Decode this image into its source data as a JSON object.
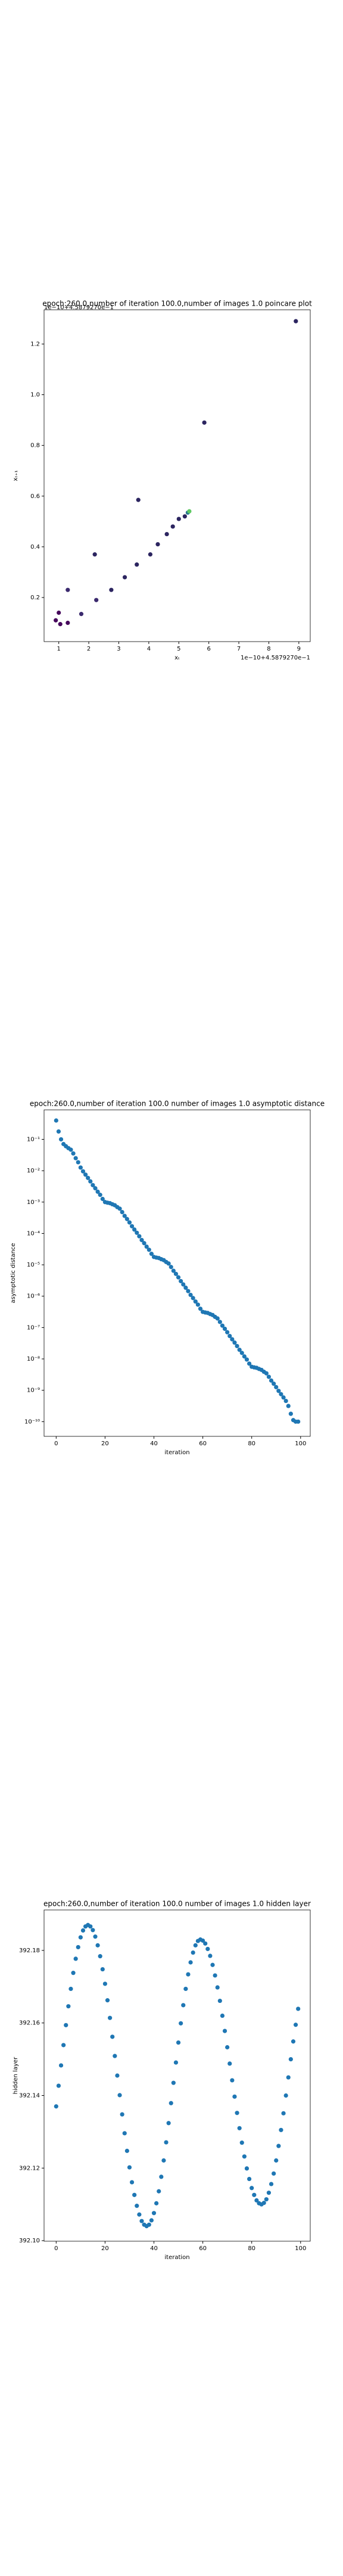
{
  "chart_data": [
    {
      "type": "scatter",
      "title": "epoch:260.0,number of iteration 100.0,number of images 1.0 poincare plot",
      "xlabel": "xₜ",
      "ylabel": "xₜ₊₁",
      "x_offset": "1e−10+4.5879270e−1",
      "y_offset": "1e−10+4.5879270e−1",
      "x": [
        0.9,
        1.0,
        1.05,
        1.3,
        1.3,
        1.75,
        2.2,
        2.25,
        2.75,
        3.2,
        3.6,
        3.65,
        4.05,
        4.3,
        4.6,
        4.8,
        5.0,
        5.2,
        5.3,
        5.35,
        5.85,
        8.9
      ],
      "series": [
        {
          "colors": [
            "#46085c",
            "#46085c",
            "#46085c",
            "#3b2a6e",
            "#46085c",
            "#3b2a6e",
            "#2c2560",
            "#3b2a6e",
            "#2c2560",
            "#2c2560",
            "#2c2560",
            "#2c2560",
            "#2c2560",
            "#2c2560",
            "#2c2560",
            "#2c2560",
            "#2c2560",
            "#2c2560",
            "#2a788e",
            "#5ec962",
            "#2c2560",
            "#2c2560"
          ],
          "values": [
            0.11,
            0.14,
            0.095,
            0.23,
            0.1,
            0.135,
            0.37,
            0.19,
            0.23,
            0.28,
            0.33,
            0.585,
            0.37,
            0.41,
            0.45,
            0.48,
            0.51,
            0.52,
            0.535,
            0.54,
            0.89,
            1.29
          ]
        }
      ],
      "xlim": [
        0.51,
        9.38
      ],
      "ylim": [
        0.026,
        1.335
      ],
      "xticks": [
        1,
        2,
        3,
        4,
        5,
        6,
        7,
        8,
        9
      ],
      "yticks": [
        0.2,
        0.4,
        0.6,
        0.8,
        {
          "value": 1,
          "label": "1.0"
        },
        1.2
      ]
    },
    {
      "type": "scatter",
      "log": true,
      "title": "epoch:260.0,number of iteration 100.0  number of images 1.0 asymptotic distance",
      "xlabel": "iteration",
      "ylabel": "asymptotic distance",
      "x": [
        0,
        1,
        2,
        3,
        4,
        5,
        6,
        7,
        8,
        9,
        10,
        11,
        12,
        13,
        14,
        15,
        16,
        17,
        18,
        19,
        20,
        21,
        22,
        23,
        24,
        25,
        26,
        27,
        28,
        29,
        30,
        31,
        32,
        33,
        34,
        35,
        36,
        37,
        38,
        39,
        40,
        41,
        42,
        43,
        44,
        45,
        46,
        47,
        48,
        49,
        50,
        51,
        52,
        53,
        54,
        55,
        56,
        57,
        58,
        59,
        60,
        61,
        62,
        63,
        64,
        65,
        66,
        67,
        68,
        69,
        70,
        71,
        72,
        73,
        74,
        75,
        76,
        77,
        78,
        79,
        80,
        81,
        82,
        83,
        84,
        85,
        86,
        87,
        88,
        89,
        90,
        91,
        92,
        93,
        94,
        95,
        96,
        97,
        98,
        99
      ],
      "series": [
        {
          "color": "#1f77b4",
          "values": [
            0.398,
            0.178,
            0.1,
            0.0708,
            0.0603,
            0.0525,
            0.0468,
            0.0355,
            0.0251,
            0.0186,
            0.0126,
            0.00955,
            0.0075,
            0.00589,
            0.00457,
            0.00347,
            0.00275,
            0.00214,
            0.0017,
            0.00126,
            0.001,
            0.000955,
            0.000923,
            0.000851,
            0.000794,
            0.000692,
            0.000617,
            0.000479,
            0.000363,
            0.000288,
            0.000224,
            0.00017,
            0.000133,
            0.000105,
            8.13e-05,
            6.17e-05,
            4.9e-05,
            3.8e-05,
            3.02e-05,
            2.24e-05,
            1.78e-05,
            1.7e-05,
            1.64e-05,
            1.51e-05,
            1.41e-05,
            1.23e-05,
            1.1e-05,
            8.51e-06,
            6.46e-06,
            5.13e-06,
            3.98e-06,
            3.02e-06,
            2.37e-06,
            1.86e-06,
            1.45e-06,
            1.1e-06,
            8.71e-07,
            6.76e-07,
            5.37e-07,
            3.98e-07,
            3.16e-07,
            3.02e-07,
            2.92e-07,
            2.69e-07,
            2.51e-07,
            2.19e-07,
            1.95e-07,
            1.51e-07,
            1.15e-07,
            9.12e-08,
            7.08e-08,
            5.37e-08,
            4.22e-08,
            3.31e-08,
            2.57e-08,
            1.95e-08,
            1.55e-08,
            1.2e-08,
            9.55e-09,
            7.08e-09,
            5.62e-09,
            5.37e-09,
            5.19e-09,
            4.79e-09,
            4.47e-09,
            3.89e-09,
            3.47e-09,
            2.69e-09,
            2.04e-09,
            1.62e-09,
            1.26e-09,
            9.55e-10,
            7.5e-10,
            5.89e-10,
            4.57e-10,
            3.16e-10,
            1.78e-10,
            1.12e-10,
            1e-10,
            1e-10
          ]
        }
      ],
      "xlim": [
        -4.95,
        103.95
      ],
      "ylim": [
        3.4e-11,
        0.87
      ],
      "xticks": [
        0,
        20,
        40,
        60,
        80,
        100
      ],
      "yticks": [
        {
          "value": 0.1,
          "label": "10⁻¹"
        },
        {
          "value": 0.01,
          "label": "10⁻²"
        },
        {
          "value": 0.001,
          "label": "10⁻³"
        },
        {
          "value": 0.0001,
          "label": "10⁻⁴"
        },
        {
          "value": 1e-05,
          "label": "10⁻⁵"
        },
        {
          "value": 1e-06,
          "label": "10⁻⁶"
        },
        {
          "value": 1e-07,
          "label": "10⁻⁷"
        },
        {
          "value": 1e-08,
          "label": "10⁻⁸"
        },
        {
          "value": 1e-09,
          "label": "10⁻⁹"
        },
        {
          "value": 1e-10,
          "label": "10⁻¹⁰"
        }
      ]
    },
    {
      "type": "scatter",
      "title": "epoch:260.0,number of iteration 100.0  number of images 1.0 hidden layer",
      "xlabel": "iteration",
      "ylabel": "hidden layer",
      "x": [
        0,
        1,
        2,
        3,
        4,
        5,
        6,
        7,
        8,
        9,
        10,
        11,
        12,
        13,
        14,
        15,
        16,
        17,
        18,
        19,
        20,
        21,
        22,
        23,
        24,
        25,
        26,
        27,
        28,
        29,
        30,
        31,
        32,
        33,
        34,
        35,
        36,
        37,
        38,
        39,
        40,
        41,
        42,
        43,
        44,
        45,
        46,
        47,
        48,
        49,
        50,
        51,
        52,
        53,
        54,
        55,
        56,
        57,
        58,
        59,
        60,
        61,
        62,
        63,
        64,
        65,
        66,
        67,
        68,
        69,
        70,
        71,
        72,
        73,
        74,
        75,
        76,
        77,
        78,
        79,
        80,
        81,
        82,
        83,
        84,
        85,
        86,
        87,
        88,
        89,
        90,
        91,
        92,
        93,
        94,
        95,
        96,
        97,
        98,
        99
      ],
      "series": [
        {
          "color": "#1f77b4",
          "values": [
            392.137,
            392.1427,
            392.1483,
            392.1539,
            392.1594,
            392.1646,
            392.1694,
            392.1738,
            392.1777,
            392.1809,
            392.1836,
            392.1855,
            392.1866,
            392.187,
            392.1866,
            392.1856,
            392.1838,
            392.1814,
            392.1784,
            392.1748,
            392.1708,
            392.16625,
            392.1614,
            392.1562,
            392.1509,
            392.1455,
            392.1401,
            392.1348,
            392.1296,
            392.12475,
            392.1202,
            392.1161,
            392.1126,
            392.1096,
            392.1072,
            392.1054,
            392.1044,
            392.104,
            392.1044,
            392.1056,
            392.1076,
            392.1103,
            392.1136,
            392.1176,
            392.1221,
            392.1271,
            392.1324,
            392.1379,
            392.1435,
            392.1491,
            392.1546,
            392.1599,
            392.1649,
            392.1694,
            392.1734,
            392.1767,
            392.1794,
            392.1814,
            392.1826,
            392.183,
            392.1827,
            392.1819,
            392.1804,
            392.1785,
            392.176,
            392.1731,
            392.1698,
            392.1661,
            392.162,
            392.1578,
            392.1533,
            392.1488,
            392.1442,
            392.1397,
            392.1352,
            392.131,
            392.127,
            392.1232,
            392.1199,
            392.117,
            392.1145,
            392.1126,
            392.1111,
            392.1103,
            392.11,
            392.1104,
            392.1114,
            392.1132,
            392.1156,
            392.1185,
            392.1221,
            392.1261,
            392.1305,
            392.1351,
            392.14,
            392.145,
            392.15,
            392.1549,
            392.1595,
            392.1639
          ]
        }
      ],
      "xlim": [
        -4.95,
        103.95
      ],
      "ylim": [
        392.09985,
        392.19115
      ],
      "xticks": [
        0,
        20,
        40,
        60,
        80,
        100
      ],
      "yticks": [
        {
          "value": 392.1,
          "label": "392.10"
        },
        392.12,
        392.14,
        392.16,
        392.18
      ]
    }
  ]
}
